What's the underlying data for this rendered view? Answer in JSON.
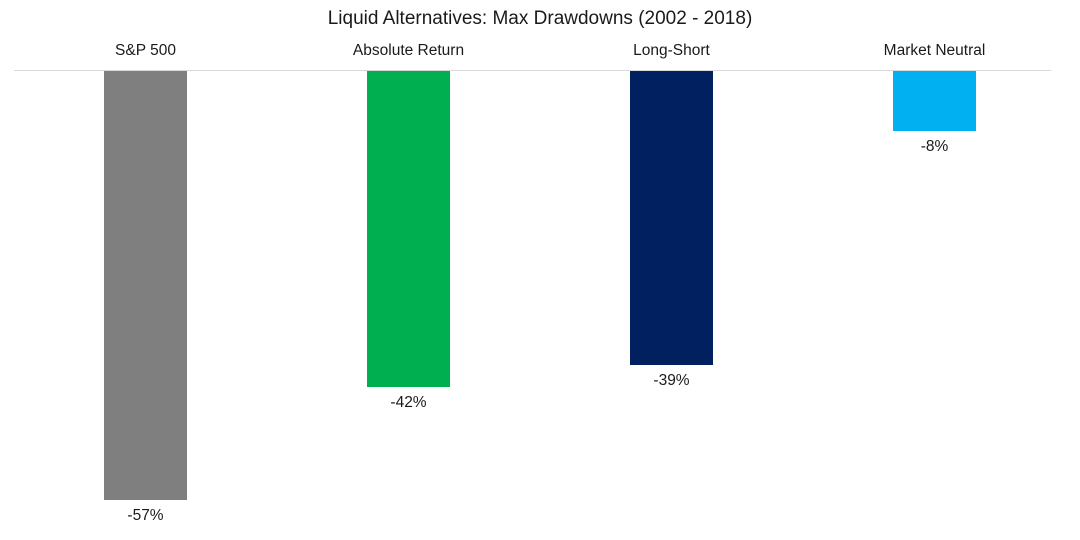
{
  "chart_data": {
    "type": "bar",
    "title": "Liquid Alternatives: Max Drawdowns (2002 - 2018)",
    "categories": [
      "S&P 500",
      "Absolute Return",
      "Long-Short",
      "Market Neutral"
    ],
    "values": [
      -57,
      -42,
      -39,
      -8
    ],
    "value_labels": [
      "-57%",
      "-42%",
      "-39%",
      "-8%"
    ],
    "colors": [
      "#7f7f7f",
      "#00b050",
      "#002060",
      "#00b0f0"
    ],
    "xlabel": "",
    "ylabel": "",
    "ylim": [
      -60,
      0
    ],
    "grid": false,
    "legend": "none",
    "category_labels_position": "top"
  }
}
